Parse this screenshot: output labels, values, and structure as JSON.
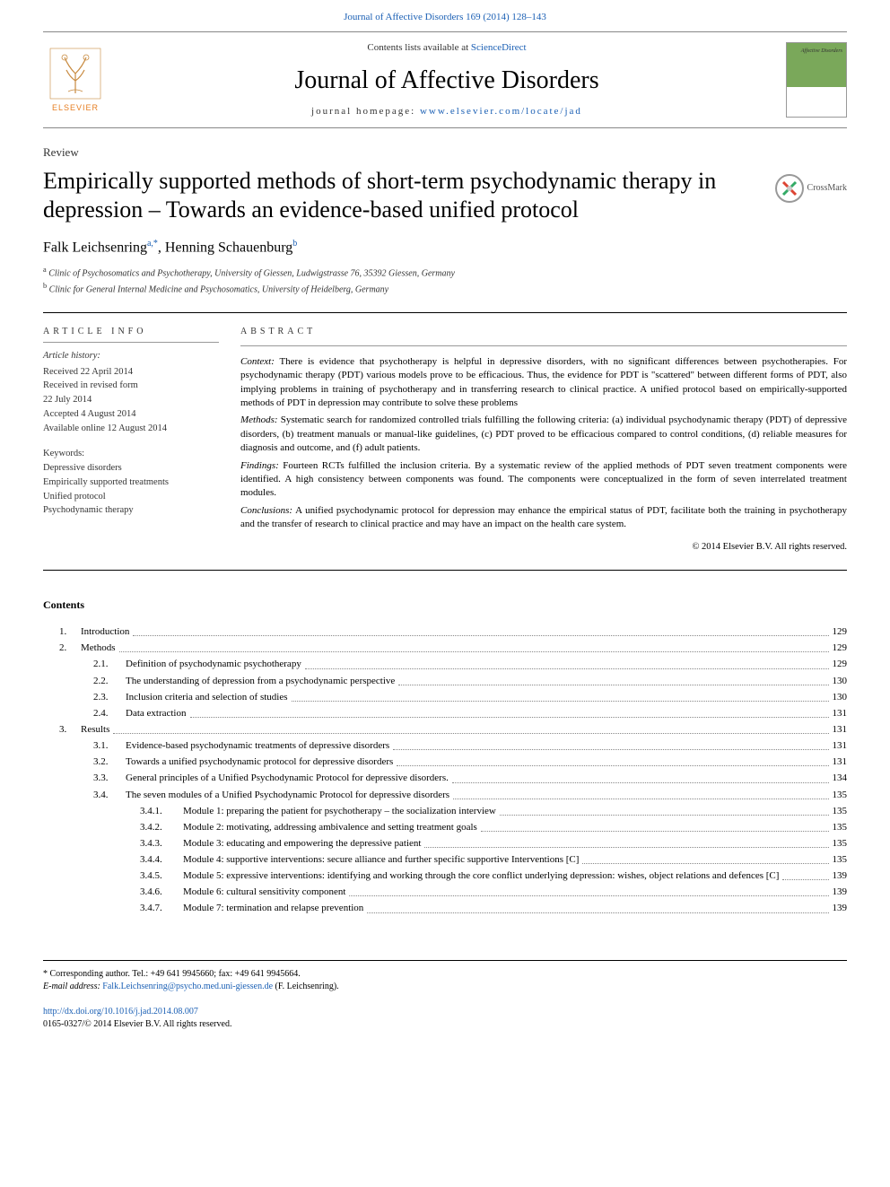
{
  "top_link": "Journal of Affective Disorders 169 (2014) 128–143",
  "header": {
    "contents_prefix": "Contents lists available at ",
    "contents_link": "ScienceDirect",
    "journal_name": "Journal of Affective Disorders",
    "homepage_prefix": "journal homepage: ",
    "homepage_link": "www.elsevier.com/locate/jad",
    "publisher_brand": "ELSEVIER"
  },
  "article": {
    "type": "Review",
    "title": "Empirically supported methods of short-term psychodynamic therapy in depression – Towards an evidence-based unified protocol",
    "crossmark_label": "CrossMark"
  },
  "authors": {
    "a1_name": "Falk Leichsenring",
    "a1_sup": "a,*",
    "sep": ", ",
    "a2_name": "Henning Schauenburg",
    "a2_sup": "b"
  },
  "affiliations": {
    "a": "Clinic of Psychosomatics and Psychotherapy, University of Giessen, Ludwigstrasse 76, 35392 Giessen, Germany",
    "b": "Clinic for General Internal Medicine and Psychosomatics, University of Heidelberg, Germany"
  },
  "article_info": {
    "heading": "article info",
    "history_label": "Article history:",
    "received": "Received 22 April 2014",
    "revised1": "Received in revised form",
    "revised2": "22 July 2014",
    "accepted": "Accepted 4 August 2014",
    "online": "Available online 12 August 2014",
    "keywords_label": "Keywords:",
    "k1": "Depressive disorders",
    "k2": "Empirically supported treatments",
    "k3": "Unified protocol",
    "k4": "Psychodynamic therapy"
  },
  "abstract": {
    "heading": "abstract",
    "context_label": "Context:",
    "context_text": " There is evidence that psychotherapy is helpful in depressive disorders, with no significant differences between psychotherapies. For psychodynamic therapy (PDT) various models prove to be efficacious. Thus, the evidence for PDT is \"scattered\" between different forms of PDT, also implying problems in training of psychotherapy and in transferring research to clinical practice. A unified protocol based on empirically-supported methods of PDT in depression may contribute to solve these problems",
    "methods_label": "Methods:",
    "methods_text": " Systematic search for randomized controlled trials fulfilling the following criteria: (a) individual psychodynamic therapy (PDT) of depressive disorders, (b) treatment manuals or manual-like guidelines, (c) PDT proved to be efficacious compared to control conditions, (d) reliable measures for diagnosis and outcome, and (f) adult patients.",
    "findings_label": "Findings:",
    "findings_text": "  Fourteen RCTs fulfilled the inclusion criteria. By a systematic review of the applied methods of PDT seven treatment components were identified. A high consistency between components was found. The components were conceptualized in the form of seven interrelated treatment modules.",
    "conclusions_label": "Conclusions:",
    "conclusions_text": "  A unified psychodynamic protocol for depression may enhance the empirical status of PDT, facilitate both the training in psychotherapy and the transfer of research to clinical practice and may have an impact on the health care system.",
    "copyright": "© 2014 Elsevier B.V. All rights reserved."
  },
  "contents": {
    "heading": "Contents",
    "items": [
      {
        "lvl": 1,
        "num": "1.",
        "title": "Introduction",
        "page": "129"
      },
      {
        "lvl": 1,
        "num": "2.",
        "title": "Methods",
        "page": "129"
      },
      {
        "lvl": 2,
        "num": "2.1.",
        "title": "Definition of psychodynamic psychotherapy",
        "page": "129"
      },
      {
        "lvl": 2,
        "num": "2.2.",
        "title": "The understanding of depression from a psychodynamic perspective",
        "page": "130"
      },
      {
        "lvl": 2,
        "num": "2.3.",
        "title": "Inclusion criteria and selection of studies",
        "page": "130"
      },
      {
        "lvl": 2,
        "num": "2.4.",
        "title": "Data extraction",
        "page": "131"
      },
      {
        "lvl": 1,
        "num": "3.",
        "title": "Results",
        "page": "131"
      },
      {
        "lvl": 2,
        "num": "3.1.",
        "title": "Evidence-based psychodynamic treatments of depressive disorders",
        "page": "131"
      },
      {
        "lvl": 2,
        "num": "3.2.",
        "title": "Towards a unified psychodynamic protocol for depressive disorders",
        "page": "131"
      },
      {
        "lvl": 2,
        "num": "3.3.",
        "title": "General principles of a Unified Psychodynamic Protocol for depressive disorders.",
        "page": "134"
      },
      {
        "lvl": 2,
        "num": "3.4.",
        "title": "The seven modules of a Unified Psychodynamic Protocol for depressive disorders",
        "page": "135"
      },
      {
        "lvl": 3,
        "num": "3.4.1.",
        "title": "Module 1: preparing the patient for psychotherapy – the socialization interview",
        "page": "135"
      },
      {
        "lvl": 3,
        "num": "3.4.2.",
        "title": "Module 2: motivating, addressing ambivalence and setting treatment goals",
        "page": "135"
      },
      {
        "lvl": 3,
        "num": "3.4.3.",
        "title": "Module 3: educating and empowering the depressive patient",
        "page": "135"
      },
      {
        "lvl": 3,
        "num": "3.4.4.",
        "title": "Module 4: supportive interventions: secure alliance and further specific supportive Interventions [C]",
        "page": "135"
      },
      {
        "lvl": 3,
        "num": "3.4.5.",
        "title": "Module 5: expressive interventions: identifying and working through the core conflict underlying depression: wishes, object relations and defences [C]",
        "page": "139"
      },
      {
        "lvl": 3,
        "num": "3.4.6.",
        "title": "Module 6: cultural sensitivity component",
        "page": "139"
      },
      {
        "lvl": 3,
        "num": "3.4.7.",
        "title": "Module 7: termination and relapse prevention",
        "page": "139"
      }
    ]
  },
  "footer": {
    "corresponding": "* Corresponding author. Tel.: +49 641 9945660; fax: +49 641 9945664.",
    "email_label": "E-mail address: ",
    "email": "Falk.Leichsenring@psycho.med.uni-giessen.de",
    "email_suffix": " (F. Leichsenring).",
    "doi": "http://dx.doi.org/10.1016/j.jad.2014.08.007",
    "issn_copyright": "0165-0327/© 2014 Elsevier B.V. All rights reserved."
  },
  "colors": {
    "link": "#1a5fb4",
    "brand": "#e67e22",
    "rule": "#000000"
  }
}
